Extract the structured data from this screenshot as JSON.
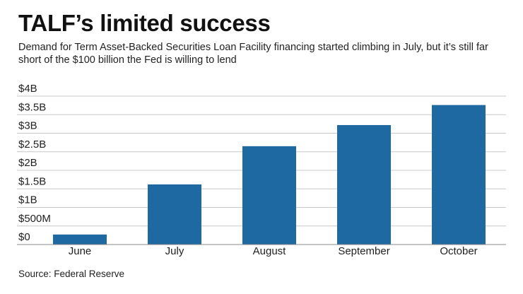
{
  "header": {
    "title": "TALF’s limited success",
    "subtitle": "Demand for Term Asset-Backed Securities Loan Facility financing started climbing in July, but it’s still far short of the $100 billion the Fed is willing to lend"
  },
  "footer": {
    "source": "Source: Federal Reserve"
  },
  "colors": {
    "bar": "#1f69a3",
    "grid": "#c8c8c8",
    "axis": "#888888",
    "text": "#222222"
  },
  "chart_data": {
    "type": "bar",
    "title": "TALF’s limited success",
    "subtitle": "Demand for Term Asset-Backed Securities Loan Facility financing started climbing in July, but it’s still far short of the $100 billion the Fed is willing to lend",
    "categories": [
      "June",
      "July",
      "August",
      "September",
      "October"
    ],
    "values": [
      0.27,
      1.62,
      2.65,
      3.22,
      3.76
    ],
    "value_unit": "billion USD",
    "ylim": [
      0,
      4
    ],
    "yticks": [
      0,
      0.5,
      1,
      1.5,
      2,
      2.5,
      3,
      3.5,
      4
    ],
    "ytick_labels": [
      "$0",
      "$500M",
      "$1B",
      "$1.5B",
      "$2B",
      "$2.5B",
      "$3B",
      "$3.5B",
      "$4B"
    ],
    "xlabel": "",
    "ylabel": "",
    "grid": true,
    "legend": "none"
  }
}
